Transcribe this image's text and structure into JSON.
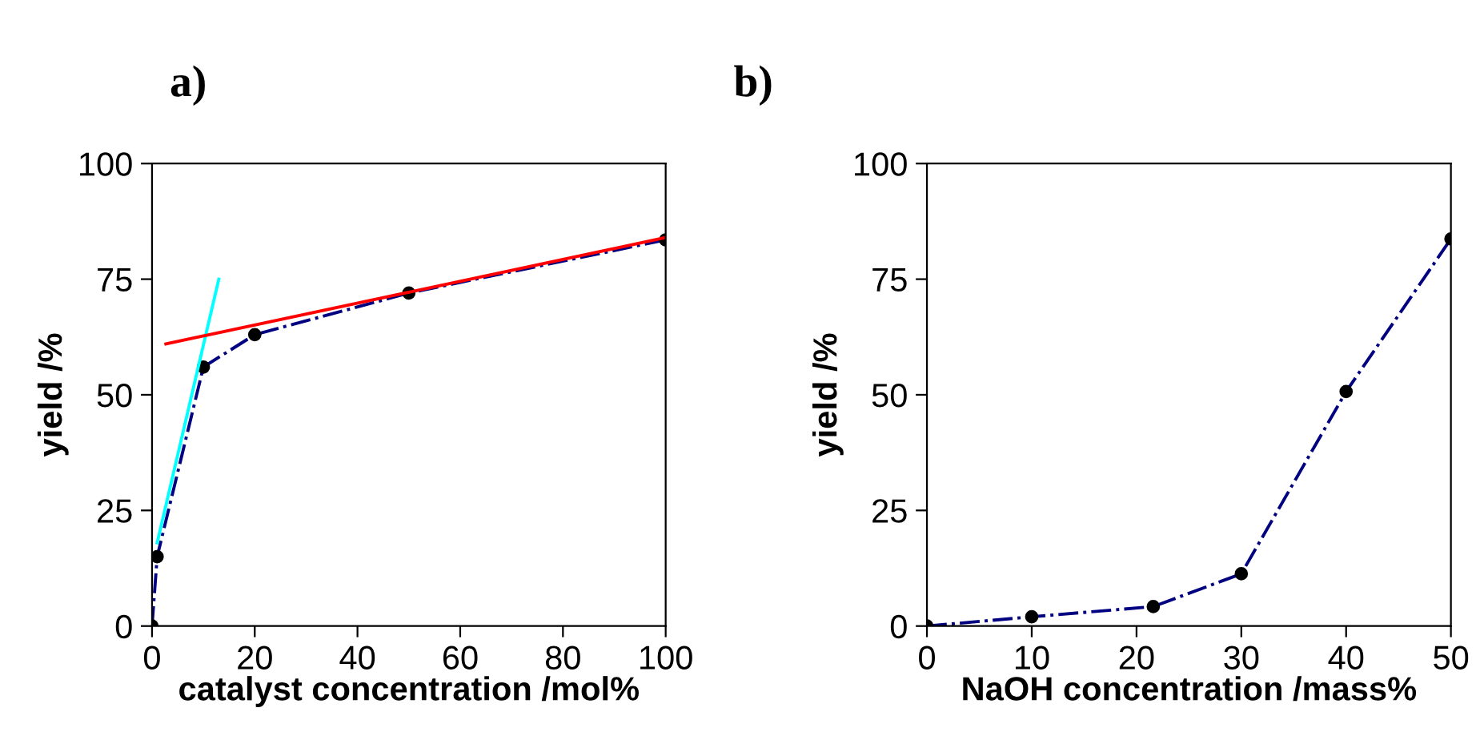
{
  "chart_data": [
    {
      "type": "line",
      "title": "a)",
      "xlabel": "catalyst concentration /mol%",
      "ylabel": "yield /%",
      "xlim": [
        0,
        100
      ],
      "xticks": [
        0,
        20,
        40,
        60,
        80,
        100
      ],
      "ylim": [
        0,
        100
      ],
      "yticks": [
        0,
        25,
        50,
        75,
        100
      ],
      "grid": false,
      "legend": false,
      "series": [
        {
          "x": [
            0,
            1,
            10,
            20,
            50,
            100
          ],
          "values": [
            0,
            15,
            56,
            63,
            72,
            83.5
          ],
          "color": "#000080",
          "marker": "circle",
          "line_style": "dashdot"
        },
        {
          "type": "line",
          "x": [
            1,
            13
          ],
          "values": [
            18,
            75
          ],
          "color": "#00ffff",
          "marker": "none",
          "line_style": "solid"
        },
        {
          "type": "line",
          "x": [
            2.7,
            100
          ],
          "values": [
            61,
            84
          ],
          "color": "#ff0000",
          "marker": "none",
          "line_style": "solid"
        }
      ]
    },
    {
      "type": "line",
      "title": "b)",
      "xlabel": "NaOH concentration /mass%",
      "ylabel": "yield /%",
      "xlim": [
        0,
        50
      ],
      "xticks": [
        0,
        10,
        20,
        30,
        40,
        50
      ],
      "ylim": [
        0,
        100
      ],
      "yticks": [
        0,
        25,
        50,
        75,
        100
      ],
      "grid": false,
      "legend": false,
      "series": [
        {
          "x": [
            0,
            10,
            21.6,
            30,
            40,
            50
          ],
          "values": [
            0,
            2,
            4.2,
            11.3,
            50.7,
            83.7
          ],
          "color": "#000080",
          "marker": "circle",
          "line_style": "dashdot"
        }
      ]
    }
  ]
}
